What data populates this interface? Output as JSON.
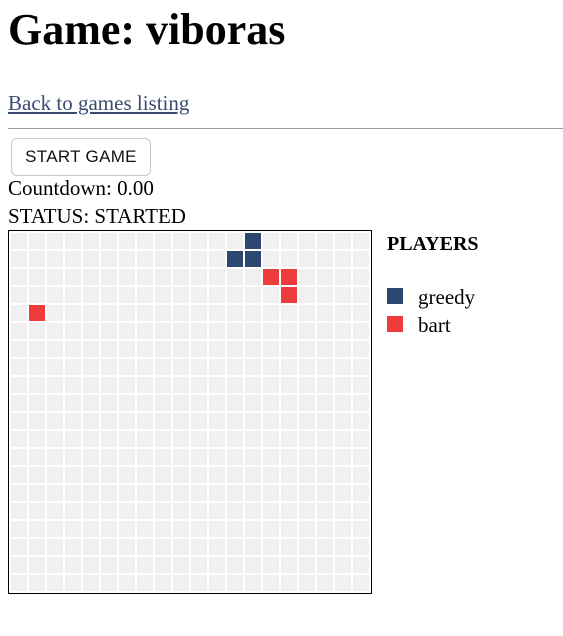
{
  "page": {
    "title": "Game: viboras",
    "back_link": "Back to games listing"
  },
  "controls": {
    "start_label": "START GAME"
  },
  "info": {
    "countdown": "Countdown: 0.00",
    "status": "STATUS: STARTED"
  },
  "board": {
    "cols": 20,
    "rows": 20,
    "empty_color": "#f0f0f0",
    "cells": [
      {
        "col": 13,
        "row": 0,
        "player": 0
      },
      {
        "col": 12,
        "row": 1,
        "player": 0
      },
      {
        "col": 13,
        "row": 1,
        "player": 0
      },
      {
        "col": 14,
        "row": 2,
        "player": 1
      },
      {
        "col": 15,
        "row": 2,
        "player": 1
      },
      {
        "col": 15,
        "row": 3,
        "player": 1
      },
      {
        "col": 1,
        "row": 4,
        "player": 1
      }
    ]
  },
  "players": {
    "title": "PLAYERS",
    "list": [
      {
        "name": "greedy",
        "color": "#2c4770"
      },
      {
        "name": "bart",
        "color": "#ee3b3b"
      }
    ]
  }
}
